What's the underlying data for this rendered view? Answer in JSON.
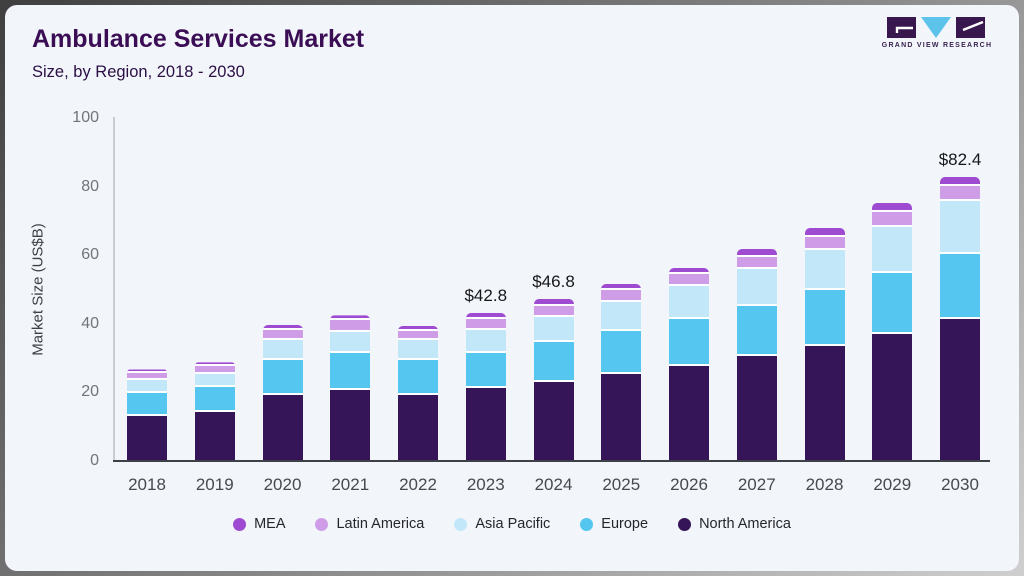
{
  "header": {
    "title": "Ambulance Services Market",
    "subtitle": "Size, by Region, 2018 - 2030"
  },
  "logo": {
    "text": "GRAND VIEW RESEARCH"
  },
  "colors": {
    "card_bg": "#f2f6fa",
    "title": "#3a0d55",
    "axis_baseline": "#3d4147",
    "axis_left": "#c9ccd3",
    "logo_block": "#38174e",
    "logo_triangle": "#5cc3ea"
  },
  "chart_data": {
    "type": "bar",
    "stacked": true,
    "title": "Ambulance Services Market",
    "subtitle": "Size, by Region, 2018 - 2030",
    "xlabel": "",
    "ylabel": "Market Size (US$B)",
    "ylim": [
      0,
      100
    ],
    "yticks": [
      0,
      20,
      40,
      60,
      80,
      100
    ],
    "grid": false,
    "categories": [
      "2018",
      "2019",
      "2020",
      "2021",
      "2022",
      "2023",
      "2024",
      "2025",
      "2026",
      "2027",
      "2028",
      "2029",
      "2030"
    ],
    "series": [
      {
        "name": "North America",
        "color": "#351457",
        "values": [
          12.8,
          14.0,
          18.9,
          20.5,
          18.9,
          20.9,
          22.8,
          25.0,
          27.5,
          30.3,
          33.3,
          36.7,
          41.0
        ]
      },
      {
        "name": "Europe",
        "color": "#55c6f0",
        "values": [
          6.8,
          7.3,
          10.2,
          10.7,
          10.2,
          10.4,
          11.5,
          12.5,
          13.6,
          14.7,
          16.2,
          17.9,
          19.0
        ]
      },
      {
        "name": "Asia Pacific",
        "color": "#c1e7f8",
        "values": [
          3.8,
          3.9,
          5.8,
          6.0,
          5.9,
          6.6,
          7.3,
          8.7,
          9.7,
          10.7,
          11.8,
          13.4,
          15.5
        ]
      },
      {
        "name": "Latin America",
        "color": "#cf9de8",
        "values": [
          2.0,
          2.2,
          3.0,
          3.5,
          2.7,
          3.1,
          3.3,
          3.3,
          3.4,
          3.5,
          3.7,
          4.2,
          4.4
        ]
      },
      {
        "name": "MEA",
        "color": "#9e4bd2",
        "values": [
          1.0,
          1.1,
          1.6,
          1.5,
          1.4,
          1.8,
          1.9,
          1.7,
          1.7,
          2.3,
          2.5,
          2.6,
          2.5
        ]
      }
    ],
    "annotations": [
      {
        "category": "2023",
        "label": "$42.8"
      },
      {
        "category": "2024",
        "label": "$46.8"
      },
      {
        "category": "2030",
        "label": "$82.4"
      }
    ],
    "legend": {
      "position": "bottom",
      "items": [
        "MEA",
        "Latin America",
        "Asia Pacific",
        "Europe",
        "North America"
      ]
    }
  }
}
